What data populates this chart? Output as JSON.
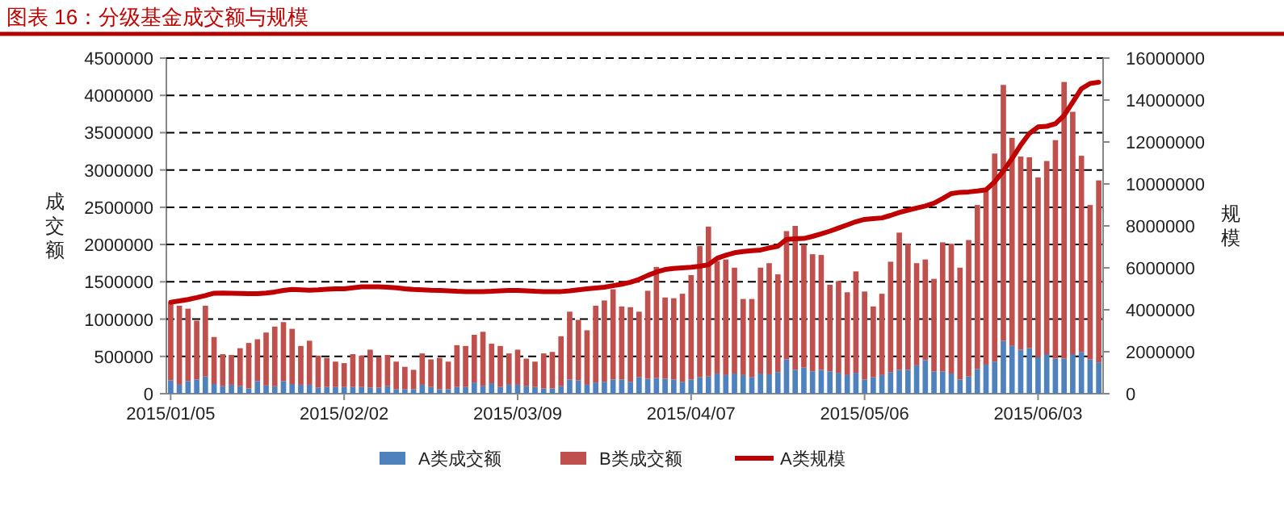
{
  "chart_data": {
    "type": "bar",
    "title": "图表 16：分级基金成交额与规模",
    "ylabel": "成交额",
    "y2label": "规模",
    "stacked": true,
    "grid": "y",
    "legend": "bottom",
    "categories": [
      "2015/01/05",
      null,
      null,
      null,
      null,
      null,
      null,
      null,
      null,
      null,
      null,
      null,
      null,
      null,
      null,
      null,
      null,
      null,
      null,
      null,
      "2015/02/02",
      null,
      null,
      null,
      null,
      null,
      null,
      null,
      null,
      null,
      null,
      null,
      null,
      null,
      null,
      null,
      null,
      null,
      null,
      null,
      "2015/03/09",
      null,
      null,
      null,
      null,
      null,
      null,
      null,
      null,
      null,
      null,
      null,
      null,
      null,
      null,
      null,
      null,
      null,
      null,
      null,
      "2015/04/07",
      null,
      null,
      null,
      null,
      null,
      null,
      null,
      null,
      null,
      null,
      null,
      null,
      null,
      null,
      null,
      null,
      null,
      null,
      null,
      "2015/05/06",
      null,
      null,
      null,
      null,
      null,
      null,
      null,
      null,
      null,
      null,
      null,
      null,
      null,
      null,
      null,
      null,
      null,
      null,
      null,
      "2015/06/03",
      null,
      null,
      null,
      null,
      null,
      null,
      null
    ],
    "ylim": [
      0,
      4500000
    ],
    "yticks": [
      0,
      500000,
      1000000,
      1500000,
      2000000,
      2500000,
      3000000,
      3500000,
      4000000,
      4500000
    ],
    "y2lim": [
      0,
      16000000
    ],
    "y2ticks": [
      0,
      2000000,
      4000000,
      6000000,
      8000000,
      10000000,
      12000000,
      14000000,
      16000000
    ],
    "series": [
      {
        "name": "A类成交额",
        "type": "bar",
        "color": "#4f81bd",
        "values": [
          180000,
          120000,
          170000,
          190000,
          230000,
          130000,
          100000,
          120000,
          100000,
          70000,
          170000,
          110000,
          100000,
          170000,
          130000,
          120000,
          120000,
          80000,
          90000,
          90000,
          90000,
          90000,
          90000,
          80000,
          80000,
          100000,
          60000,
          60000,
          60000,
          120000,
          90000,
          60000,
          60000,
          90000,
          90000,
          150000,
          100000,
          140000,
          90000,
          120000,
          120000,
          100000,
          90000,
          70000,
          70000,
          100000,
          190000,
          180000,
          120000,
          150000,
          160000,
          190000,
          190000,
          160000,
          220000,
          200000,
          210000,
          200000,
          190000,
          160000,
          190000,
          220000,
          230000,
          270000,
          250000,
          270000,
          250000,
          220000,
          270000,
          260000,
          290000,
          460000,
          320000,
          350000,
          300000,
          320000,
          300000,
          280000,
          250000,
          280000,
          190000,
          220000,
          250000,
          290000,
          320000,
          320000,
          380000,
          450000,
          300000,
          300000,
          270000,
          190000,
          230000,
          330000,
          390000,
          430000,
          710000,
          640000,
          590000,
          610000,
          490000,
          530000,
          470000,
          470000,
          530000,
          560000,
          460000,
          420000
        ]
      },
      {
        "name": "B类成交额",
        "type": "bar",
        "color": "#c0504d",
        "values": [
          1040000,
          1060000,
          970000,
          790000,
          950000,
          630000,
          430000,
          400000,
          510000,
          610000,
          560000,
          710000,
          800000,
          790000,
          740000,
          520000,
          590000,
          430000,
          390000,
          340000,
          320000,
          440000,
          420000,
          510000,
          410000,
          420000,
          370000,
          300000,
          260000,
          420000,
          370000,
          420000,
          370000,
          560000,
          550000,
          640000,
          730000,
          530000,
          550000,
          420000,
          470000,
          370000,
          340000,
          470000,
          490000,
          670000,
          910000,
          810000,
          730000,
          1030000,
          1090000,
          1210000,
          980000,
          1000000,
          880000,
          1180000,
          1490000,
          1090000,
          1090000,
          1180000,
          1400000,
          1760000,
          2010000,
          1510000,
          1550000,
          1420000,
          1020000,
          1050000,
          1420000,
          1490000,
          1310000,
          1720000,
          1930000,
          1650000,
          1570000,
          1540000,
          1160000,
          1230000,
          1110000,
          1360000,
          1180000,
          950000,
          1090000,
          1480000,
          1840000,
          1690000,
          1370000,
          1350000,
          1240000,
          1730000,
          1740000,
          1500000,
          1830000,
          2200000,
          2330000,
          2790000,
          3430000,
          2790000,
          2590000,
          2560000,
          2410000,
          2590000,
          2930000,
          3710000,
          3250000,
          2630000,
          2070000,
          2440000
        ]
      },
      {
        "name": "A类规模",
        "type": "line",
        "axis": "y2",
        "color": "#c00000",
        "values": [
          4360000,
          4420000,
          4490000,
          4580000,
          4680000,
          4790000,
          4800000,
          4790000,
          4780000,
          4770000,
          4770000,
          4800000,
          4850000,
          4920000,
          4970000,
          4950000,
          4930000,
          4950000,
          4980000,
          5000000,
          5000000,
          5050000,
          5100000,
          5100000,
          5100000,
          5080000,
          5050000,
          5000000,
          4970000,
          4950000,
          4930000,
          4920000,
          4900000,
          4880000,
          4870000,
          4870000,
          4870000,
          4880000,
          4900000,
          4920000,
          4920000,
          4900000,
          4880000,
          4870000,
          4870000,
          4870000,
          4900000,
          4950000,
          5000000,
          5040000,
          5080000,
          5150000,
          5220000,
          5310000,
          5450000,
          5640000,
          5800000,
          5920000,
          5970000,
          6000000,
          6030000,
          6080000,
          6150000,
          6460000,
          6600000,
          6720000,
          6780000,
          6820000,
          6850000,
          6950000,
          7030000,
          7360000,
          7380000,
          7400000,
          7500000,
          7620000,
          7750000,
          7900000,
          8050000,
          8200000,
          8310000,
          8350000,
          8380000,
          8500000,
          8640000,
          8750000,
          8850000,
          8950000,
          9080000,
          9300000,
          9540000,
          9600000,
          9620000,
          9660000,
          9720000,
          10100000,
          10620000,
          11210000,
          11850000,
          12410000,
          12720000,
          12750000,
          12870000,
          13260000,
          13900000,
          14540000,
          14790000,
          14850000
        ]
      }
    ]
  }
}
